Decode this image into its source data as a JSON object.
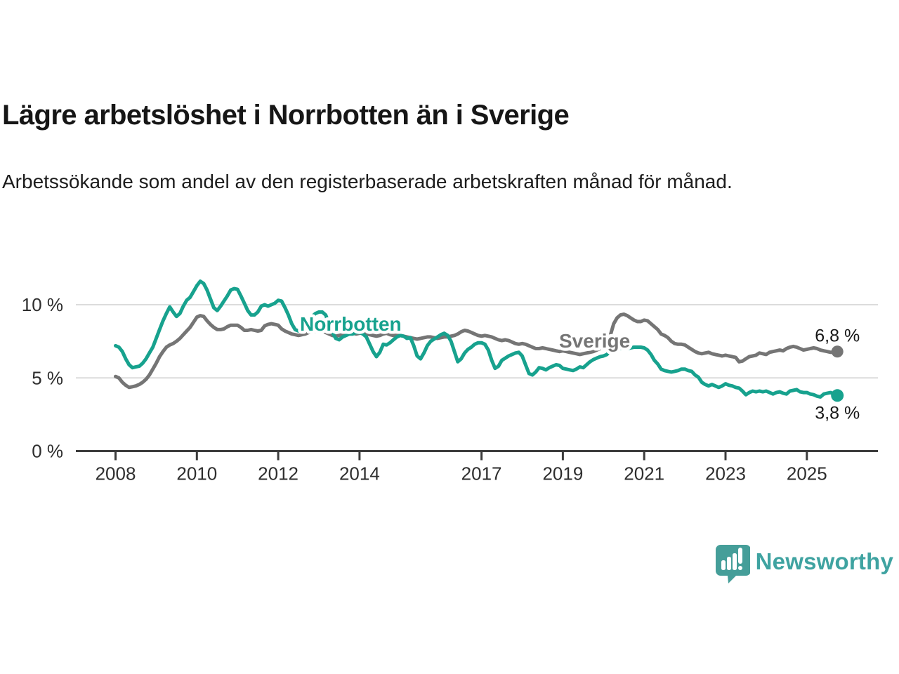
{
  "header": {
    "title": "Lägre arbetslöshet i Norrbotten än i Sverige",
    "subtitle": "Arbetssökande som andel av den registerbaserade arbetskraften månad för månad."
  },
  "chart_data": {
    "type": "line",
    "unit": "%",
    "frequency": "monthly",
    "x_start": "2008-01",
    "x_end": "2025-10",
    "ylim": [
      0,
      12
    ],
    "grid": "horizontal",
    "legend_position": "inline-labels",
    "yticks": [
      {
        "label": "0 %",
        "value": 0
      },
      {
        "label": "5 %",
        "value": 5
      },
      {
        "label": "10 %",
        "value": 10
      }
    ],
    "xticks": [
      2008,
      2010,
      2012,
      2014,
      2017,
      2019,
      2021,
      2023,
      2025
    ],
    "series": [
      {
        "name": "Sverige",
        "color": "#757575",
        "end_label": "6,8 %",
        "end_value": 6.8,
        "values": [
          5.1,
          5.0,
          4.7,
          4.5,
          4.35,
          4.4,
          4.45,
          4.55,
          4.7,
          4.9,
          5.2,
          5.6,
          6.0,
          6.45,
          6.8,
          7.1,
          7.25,
          7.35,
          7.5,
          7.7,
          7.95,
          8.2,
          8.45,
          8.8,
          9.15,
          9.25,
          9.2,
          8.9,
          8.65,
          8.45,
          8.3,
          8.3,
          8.35,
          8.5,
          8.6,
          8.6,
          8.6,
          8.45,
          8.25,
          8.25,
          8.3,
          8.25,
          8.2,
          8.25,
          8.55,
          8.65,
          8.7,
          8.65,
          8.6,
          8.35,
          8.2,
          8.1,
          8.0,
          7.95,
          7.9,
          7.95,
          8.0,
          8.1,
          8.15,
          8.2,
          8.25,
          8.2,
          8.1,
          8.0,
          7.9,
          7.85,
          7.9,
          7.95,
          8.0,
          8.05,
          8.05,
          8.0,
          8.05,
          8.1,
          8.0,
          7.95,
          7.9,
          7.85,
          7.9,
          8.0,
          8.05,
          7.95,
          7.9,
          7.9,
          7.9,
          7.85,
          7.8,
          7.75,
          7.7,
          7.65,
          7.7,
          7.75,
          7.8,
          7.8,
          7.75,
          7.7,
          7.75,
          7.8,
          7.8,
          7.85,
          7.9,
          8.0,
          8.15,
          8.25,
          8.2,
          8.1,
          8.0,
          7.9,
          7.85,
          7.9,
          7.85,
          7.8,
          7.7,
          7.6,
          7.55,
          7.6,
          7.55,
          7.45,
          7.35,
          7.3,
          7.35,
          7.3,
          7.2,
          7.1,
          7.0,
          7.0,
          7.05,
          7.0,
          6.95,
          6.9,
          6.85,
          6.8,
          6.85,
          6.8,
          6.75,
          6.7,
          6.65,
          6.6,
          6.65,
          6.7,
          6.75,
          6.8,
          6.9,
          7.0,
          7.2,
          7.4,
          7.9,
          8.7,
          9.1,
          9.3,
          9.35,
          9.25,
          9.1,
          8.95,
          8.85,
          8.85,
          8.95,
          8.9,
          8.7,
          8.5,
          8.3,
          8.0,
          7.9,
          7.75,
          7.5,
          7.35,
          7.3,
          7.3,
          7.25,
          7.1,
          6.95,
          6.8,
          6.7,
          6.65,
          6.7,
          6.75,
          6.65,
          6.6,
          6.55,
          6.5,
          6.55,
          6.5,
          6.45,
          6.4,
          6.1,
          6.15,
          6.3,
          6.45,
          6.5,
          6.55,
          6.7,
          6.65,
          6.6,
          6.75,
          6.8,
          6.85,
          6.9,
          6.85,
          7.0,
          7.1,
          7.15,
          7.1,
          7.0,
          6.9,
          6.95,
          7.0,
          7.05,
          7.0,
          6.9,
          6.85,
          6.8,
          6.75,
          6.75,
          6.8
        ]
      },
      {
        "name": "Norrbotten",
        "color": "#17a28e",
        "end_label": "3,8 %",
        "end_value": 3.8,
        "values": [
          7.2,
          7.1,
          6.8,
          6.3,
          5.9,
          5.7,
          5.75,
          5.8,
          6.0,
          6.3,
          6.7,
          7.1,
          7.7,
          8.3,
          8.9,
          9.4,
          9.85,
          9.5,
          9.2,
          9.4,
          9.9,
          10.3,
          10.5,
          10.9,
          11.3,
          11.6,
          11.45,
          11.0,
          10.4,
          9.8,
          9.6,
          9.9,
          10.25,
          10.6,
          11.0,
          11.1,
          11.05,
          10.6,
          10.1,
          9.6,
          9.3,
          9.3,
          9.5,
          9.9,
          10.0,
          9.9,
          10.0,
          10.1,
          10.3,
          10.25,
          9.8,
          9.3,
          8.7,
          8.3,
          8.2,
          8.5,
          8.8,
          9.0,
          9.2,
          9.4,
          9.5,
          9.5,
          9.3,
          8.7,
          8.1,
          7.7,
          7.6,
          7.8,
          7.9,
          8.0,
          8.0,
          8.1,
          8.1,
          8.0,
          7.8,
          7.3,
          6.8,
          6.45,
          6.75,
          7.3,
          7.25,
          7.4,
          7.6,
          7.8,
          7.9,
          7.85,
          7.7,
          7.75,
          7.2,
          6.5,
          6.3,
          6.7,
          7.2,
          7.5,
          7.65,
          7.8,
          7.95,
          8.05,
          7.9,
          7.5,
          6.8,
          6.1,
          6.3,
          6.7,
          6.95,
          7.1,
          7.3,
          7.4,
          7.4,
          7.3,
          6.9,
          6.2,
          5.65,
          5.8,
          6.2,
          6.35,
          6.5,
          6.6,
          6.7,
          6.75,
          6.5,
          5.9,
          5.3,
          5.2,
          5.4,
          5.7,
          5.65,
          5.55,
          5.7,
          5.8,
          5.9,
          5.85,
          5.65,
          5.6,
          5.55,
          5.5,
          5.6,
          5.75,
          5.7,
          5.9,
          6.1,
          6.25,
          6.35,
          6.45,
          6.5,
          6.6,
          6.85,
          7.0,
          7.05,
          7.0,
          7.05,
          7.0,
          7.05,
          7.1,
          7.1,
          7.1,
          7.05,
          6.9,
          6.6,
          6.2,
          5.95,
          5.6,
          5.5,
          5.45,
          5.4,
          5.45,
          5.5,
          5.6,
          5.6,
          5.5,
          5.45,
          5.2,
          5.05,
          4.7,
          4.55,
          4.45,
          4.55,
          4.45,
          4.35,
          4.45,
          4.6,
          4.5,
          4.45,
          4.35,
          4.3,
          4.1,
          3.85,
          4.0,
          4.1,
          4.05,
          4.1,
          4.05,
          4.1,
          4.0,
          3.9,
          4.0,
          4.05,
          3.95,
          3.9,
          4.1,
          4.15,
          4.2,
          4.05,
          4.0,
          4.0,
          3.9,
          3.85,
          3.75,
          3.7,
          3.9,
          3.95,
          4.0,
          3.9,
          3.8
        ]
      }
    ]
  },
  "footer": {
    "brand": "Newsworthy",
    "brand_color": "#3fa3a1",
    "logo_icon": "speech-bubble-bar-chart"
  }
}
